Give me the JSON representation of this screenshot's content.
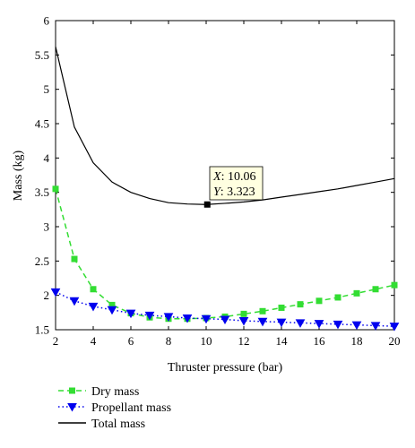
{
  "chart_data": {
    "type": "line",
    "title": "",
    "xlabel": "Thruster pressure (bar)",
    "ylabel": "Mass (kg)",
    "xlim": [
      2,
      20
    ],
    "ylim": [
      1.5,
      6
    ],
    "xticks": [
      2,
      4,
      6,
      8,
      10,
      12,
      14,
      16,
      18,
      20
    ],
    "yticks": [
      1.5,
      2,
      2.5,
      3,
      3.5,
      4,
      4.5,
      5,
      5.5,
      6
    ],
    "ytick_labels": [
      "1.5",
      "2",
      "2.5",
      "3",
      "3.5",
      "4",
      "4.5",
      "5",
      "5.5",
      "6"
    ],
    "grid": false,
    "legend_position": "bottom-left",
    "x": [
      2,
      3,
      4,
      5,
      6,
      7,
      8,
      9,
      10,
      11,
      12,
      13,
      14,
      15,
      16,
      17,
      18,
      19,
      20
    ],
    "series": [
      {
        "name": "Dry mass",
        "color": "#33dd33",
        "line_style": "dashed",
        "marker": "square",
        "values": [
          3.55,
          2.53,
          2.09,
          1.86,
          1.74,
          1.68,
          1.66,
          1.66,
          1.67,
          1.69,
          1.73,
          1.77,
          1.82,
          1.87,
          1.92,
          1.97,
          2.03,
          2.09,
          2.15
        ]
      },
      {
        "name": "Propellant mass",
        "color": "#0000ee",
        "line_style": "dotted",
        "marker": "triangle-down",
        "values": [
          2.05,
          1.92,
          1.84,
          1.79,
          1.74,
          1.71,
          1.69,
          1.67,
          1.66,
          1.65,
          1.63,
          1.62,
          1.61,
          1.6,
          1.59,
          1.58,
          1.57,
          1.56,
          1.55
        ]
      },
      {
        "name": "Total mass",
        "color": "#000000",
        "line_style": "solid",
        "marker": "none",
        "values": [
          5.62,
          4.45,
          3.93,
          3.65,
          3.5,
          3.41,
          3.35,
          3.33,
          3.323,
          3.34,
          3.36,
          3.39,
          3.43,
          3.47,
          3.51,
          3.55,
          3.6,
          3.65,
          3.7
        ]
      }
    ],
    "datatip": {
      "x": 10.06,
      "y": 3.323,
      "x_prefix": "X",
      "x_value": "10.06",
      "y_prefix": "Y",
      "y_value": "3.323"
    }
  }
}
